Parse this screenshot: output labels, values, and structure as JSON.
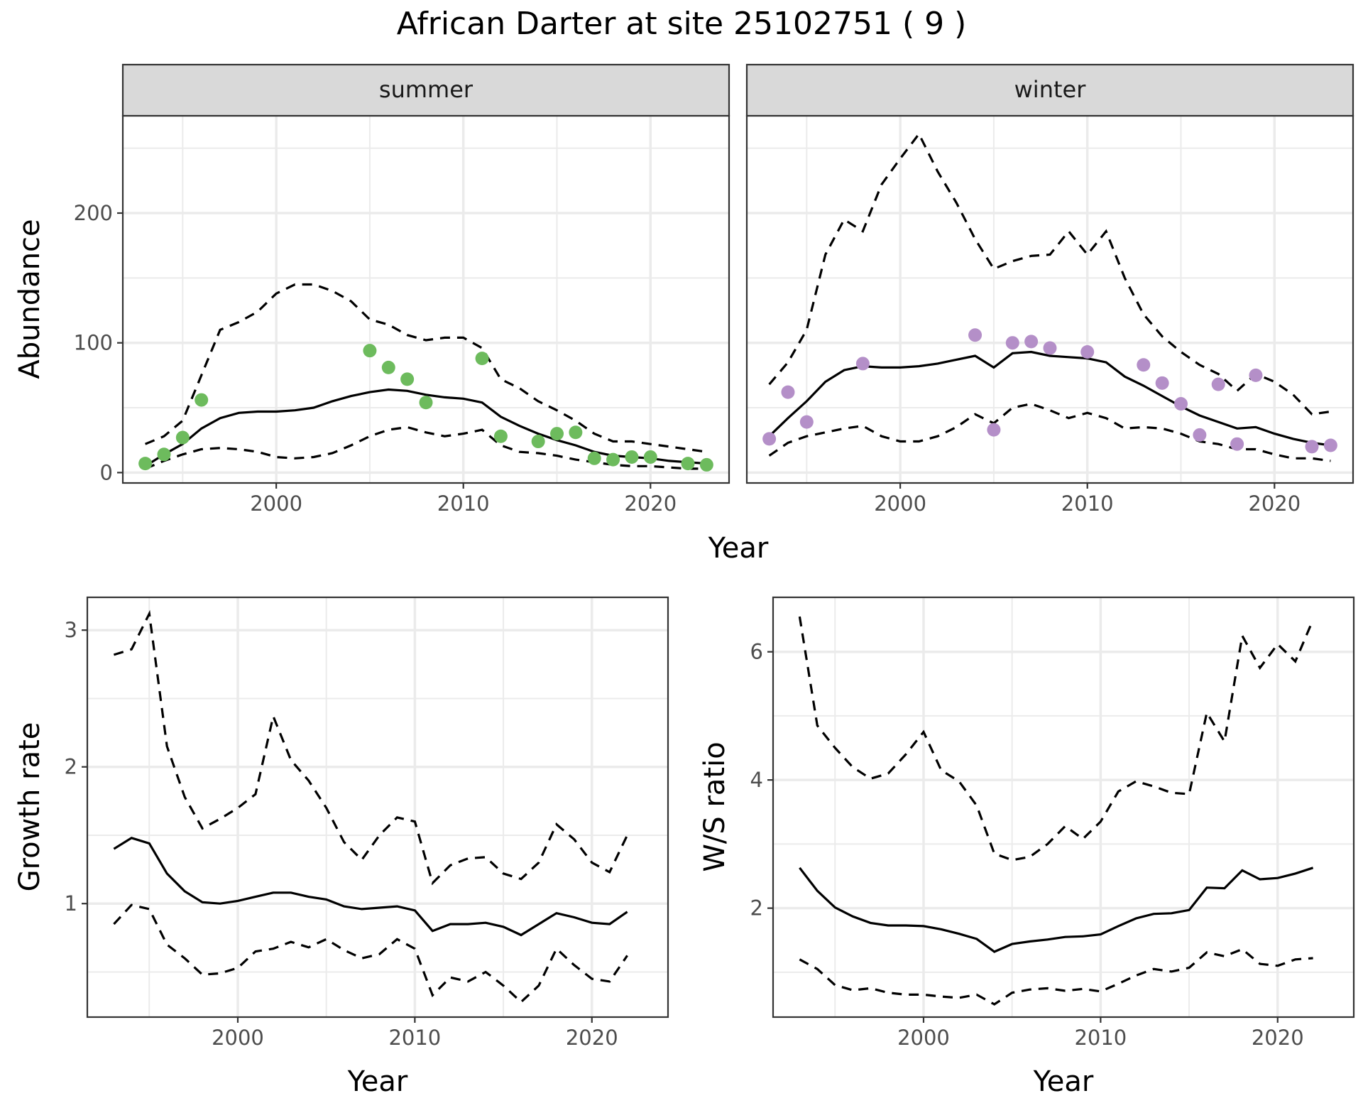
{
  "title": "African Darter at site 25102751 ( 9 )",
  "chart_data": [
    {
      "type": "line",
      "panel": "abundance",
      "facets": [
        "summer",
        "winter"
      ],
      "xlabel": "Year",
      "ylabel": "Abundance",
      "xlim": [
        1991.8,
        2024.2
      ],
      "ylim": [
        -8,
        275
      ],
      "xticks": [
        2000,
        2010,
        2020
      ],
      "yticks": [
        0,
        100,
        200
      ],
      "grid": true,
      "summer": {
        "point_color": "#6dbb5d",
        "points": {
          "x": [
            1993,
            1994,
            1995,
            1996,
            2005,
            2006,
            2007,
            2008,
            2011,
            2012,
            2014,
            2015,
            2016,
            2017,
            2018,
            2019,
            2020,
            2022,
            2023
          ],
          "y": [
            7,
            14,
            27,
            56,
            94,
            81,
            72,
            54,
            88,
            28,
            24,
            30,
            31,
            11,
            10,
            12,
            12,
            7,
            6
          ]
        },
        "x": [
          1993,
          1994,
          1995,
          1996,
          1997,
          1998,
          1999,
          2000,
          2001,
          2002,
          2003,
          2004,
          2005,
          2006,
          2007,
          2008,
          2009,
          2010,
          2011,
          2012,
          2013,
          2014,
          2015,
          2016,
          2017,
          2018,
          2019,
          2020,
          2021,
          2022,
          2023
        ],
        "median": [
          5,
          14,
          22,
          34,
          42,
          46,
          47,
          47,
          48,
          50,
          55,
          59,
          62,
          64,
          63,
          60,
          58,
          57,
          54,
          43,
          36,
          30,
          25,
          21,
          16,
          13,
          12,
          11,
          9,
          8,
          7
        ],
        "upper": [
          22,
          28,
          40,
          75,
          110,
          116,
          124,
          138,
          145,
          145,
          140,
          132,
          118,
          114,
          106,
          102,
          104,
          104,
          96,
          72,
          65,
          55,
          48,
          40,
          30,
          24,
          24,
          22,
          20,
          18,
          16
        ],
        "lower": [
          3,
          9,
          14,
          18,
          19,
          18,
          16,
          12,
          11,
          12,
          15,
          21,
          28,
          33,
          35,
          31,
          28,
          30,
          33,
          21,
          16,
          15,
          13,
          10,
          8,
          6,
          5,
          5,
          4,
          3,
          3
        ]
      },
      "winter": {
        "point_color": "#b48fc8",
        "points": {
          "x": [
            1993,
            1994,
            1995,
            1998,
            2004,
            2005,
            2006,
            2007,
            2008,
            2010,
            2013,
            2014,
            2015,
            2016,
            2017,
            2018,
            2019,
            2022,
            2023
          ],
          "y": [
            26,
            62,
            39,
            84,
            106,
            33,
            100,
            101,
            96,
            93,
            83,
            69,
            53,
            29,
            68,
            22,
            75,
            20,
            21
          ]
        },
        "x": [
          1993,
          1994,
          1995,
          1996,
          1997,
          1998,
          1999,
          2000,
          2001,
          2002,
          2003,
          2004,
          2005,
          2006,
          2007,
          2008,
          2009,
          2010,
          2011,
          2012,
          2013,
          2014,
          2015,
          2016,
          2017,
          2018,
          2019,
          2020,
          2021,
          2022,
          2023
        ],
        "median": [
          28,
          42,
          55,
          70,
          79,
          82,
          81,
          81,
          82,
          84,
          87,
          90,
          81,
          92,
          93,
          90,
          89,
          88,
          85,
          74,
          67,
          59,
          51,
          44,
          39,
          34,
          35,
          30,
          26,
          23,
          21
        ],
        "upper": [
          68,
          85,
          110,
          168,
          195,
          186,
          222,
          242,
          261,
          232,
          208,
          180,
          157,
          163,
          167,
          168,
          186,
          168,
          186,
          150,
          122,
          105,
          93,
          83,
          76,
          63,
          76,
          70,
          60,
          45,
          47
        ],
        "lower": [
          13,
          23,
          28,
          31,
          34,
          36,
          28,
          24,
          24,
          28,
          35,
          45,
          38,
          50,
          53,
          48,
          42,
          46,
          42,
          34,
          35,
          34,
          30,
          24,
          22,
          18,
          18,
          14,
          11,
          11,
          9
        ]
      }
    },
    {
      "type": "line",
      "panel": "growth",
      "xlabel": "Year",
      "ylabel": "Growth rate",
      "xlim": [
        1991.5,
        2024.3
      ],
      "ylim": [
        0.17,
        3.24
      ],
      "xticks": [
        2000,
        2010,
        2020
      ],
      "yticks": [
        1,
        2,
        3
      ],
      "grid": true,
      "x": [
        1993,
        1994,
        1995,
        1996,
        1997,
        1998,
        1999,
        2000,
        2001,
        2002,
        2003,
        2004,
        2005,
        2006,
        2007,
        2008,
        2009,
        2010,
        2011,
        2012,
        2013,
        2014,
        2015,
        2016,
        2017,
        2018,
        2019,
        2020,
        2021,
        2022
      ],
      "median": [
        1.4,
        1.48,
        1.44,
        1.22,
        1.09,
        1.01,
        1.0,
        1.02,
        1.05,
        1.08,
        1.08,
        1.05,
        1.03,
        0.98,
        0.96,
        0.97,
        0.98,
        0.95,
        0.8,
        0.85,
        0.85,
        0.86,
        0.83,
        0.77,
        0.85,
        0.93,
        0.9,
        0.86,
        0.85,
        0.94
      ],
      "upper": [
        2.82,
        2.86,
        3.12,
        2.15,
        1.78,
        1.55,
        1.62,
        1.7,
        1.8,
        2.37,
        2.05,
        1.9,
        1.7,
        1.45,
        1.32,
        1.5,
        1.63,
        1.6,
        1.15,
        1.28,
        1.33,
        1.34,
        1.22,
        1.18,
        1.3,
        1.58,
        1.47,
        1.3,
        1.23,
        1.5
      ],
      "lower": [
        0.85,
        0.99,
        0.96,
        0.7,
        0.6,
        0.48,
        0.49,
        0.53,
        0.65,
        0.67,
        0.72,
        0.68,
        0.74,
        0.66,
        0.6,
        0.63,
        0.74,
        0.67,
        0.33,
        0.46,
        0.43,
        0.5,
        0.4,
        0.28,
        0.4,
        0.67,
        0.55,
        0.45,
        0.43,
        0.62
      ]
    },
    {
      "type": "line",
      "panel": "ws_ratio",
      "xlabel": "Year",
      "ylabel": "W/S ratio",
      "xlim": [
        1991.5,
        2024.3
      ],
      "ylim": [
        0.3,
        6.85
      ],
      "xticks": [
        2000,
        2010,
        2020
      ],
      "yticks": [
        2,
        4,
        6
      ],
      "grid": true,
      "x": [
        1993,
        1994,
        1995,
        1996,
        1997,
        1998,
        1999,
        2000,
        2001,
        2002,
        2003,
        2004,
        2005,
        2006,
        2007,
        2008,
        2009,
        2010,
        2011,
        2012,
        2013,
        2014,
        2015,
        2016,
        2017,
        2018,
        2019,
        2020,
        2021,
        2022
      ],
      "median": [
        2.63,
        2.27,
        2.01,
        1.87,
        1.77,
        1.73,
        1.73,
        1.72,
        1.67,
        1.6,
        1.52,
        1.32,
        1.44,
        1.48,
        1.51,
        1.55,
        1.56,
        1.59,
        1.72,
        1.84,
        1.91,
        1.92,
        1.97,
        2.32,
        2.31,
        2.59,
        2.45,
        2.47,
        2.54,
        2.63
      ],
      "upper": [
        6.55,
        4.85,
        4.5,
        4.2,
        4.02,
        4.1,
        4.4,
        4.75,
        4.15,
        3.98,
        3.6,
        2.85,
        2.75,
        2.8,
        3.0,
        3.28,
        3.08,
        3.35,
        3.82,
        3.98,
        3.9,
        3.8,
        3.78,
        5.05,
        4.6,
        6.25,
        5.75,
        6.12,
        5.85,
        6.5
      ],
      "lower": [
        1.2,
        1.05,
        0.8,
        0.72,
        0.75,
        0.68,
        0.65,
        0.65,
        0.62,
        0.6,
        0.65,
        0.5,
        0.68,
        0.73,
        0.75,
        0.71,
        0.74,
        0.7,
        0.82,
        0.95,
        1.05,
        1.01,
        1.07,
        1.31,
        1.25,
        1.36,
        1.13,
        1.1,
        1.2,
        1.22
      ]
    }
  ]
}
